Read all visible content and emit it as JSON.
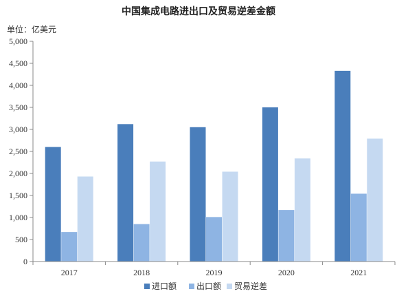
{
  "chart_data": {
    "type": "bar",
    "title": "中国集成电路进出口及贸易逆差金额",
    "unit_label": "单位：亿美元",
    "xlabel": "",
    "ylabel": "",
    "categories": [
      "2017",
      "2018",
      "2019",
      "2020",
      "2021"
    ],
    "ylim": [
      0,
      5000
    ],
    "yticks": [
      "0",
      "500",
      "1,000",
      "1,500",
      "2,000",
      "2,500",
      "3,000",
      "3,500",
      "4,000",
      "4,500",
      "5,000"
    ],
    "ytick_values": [
      0,
      500,
      1000,
      1500,
      2000,
      2500,
      3000,
      3500,
      4000,
      4500,
      5000
    ],
    "grid": false,
    "legend_position": "bottom",
    "series": [
      {
        "name": "进口额",
        "color": "#4a7ebb",
        "values": [
          2600,
          3120,
          3050,
          3500,
          4330
        ]
      },
      {
        "name": "出口额",
        "color": "#8eb4e3",
        "values": [
          670,
          850,
          1010,
          1170,
          1540
        ]
      },
      {
        "name": "贸易逆差",
        "color": "#c5d9f1",
        "values": [
          1930,
          2270,
          2040,
          2340,
          2790
        ]
      }
    ]
  }
}
